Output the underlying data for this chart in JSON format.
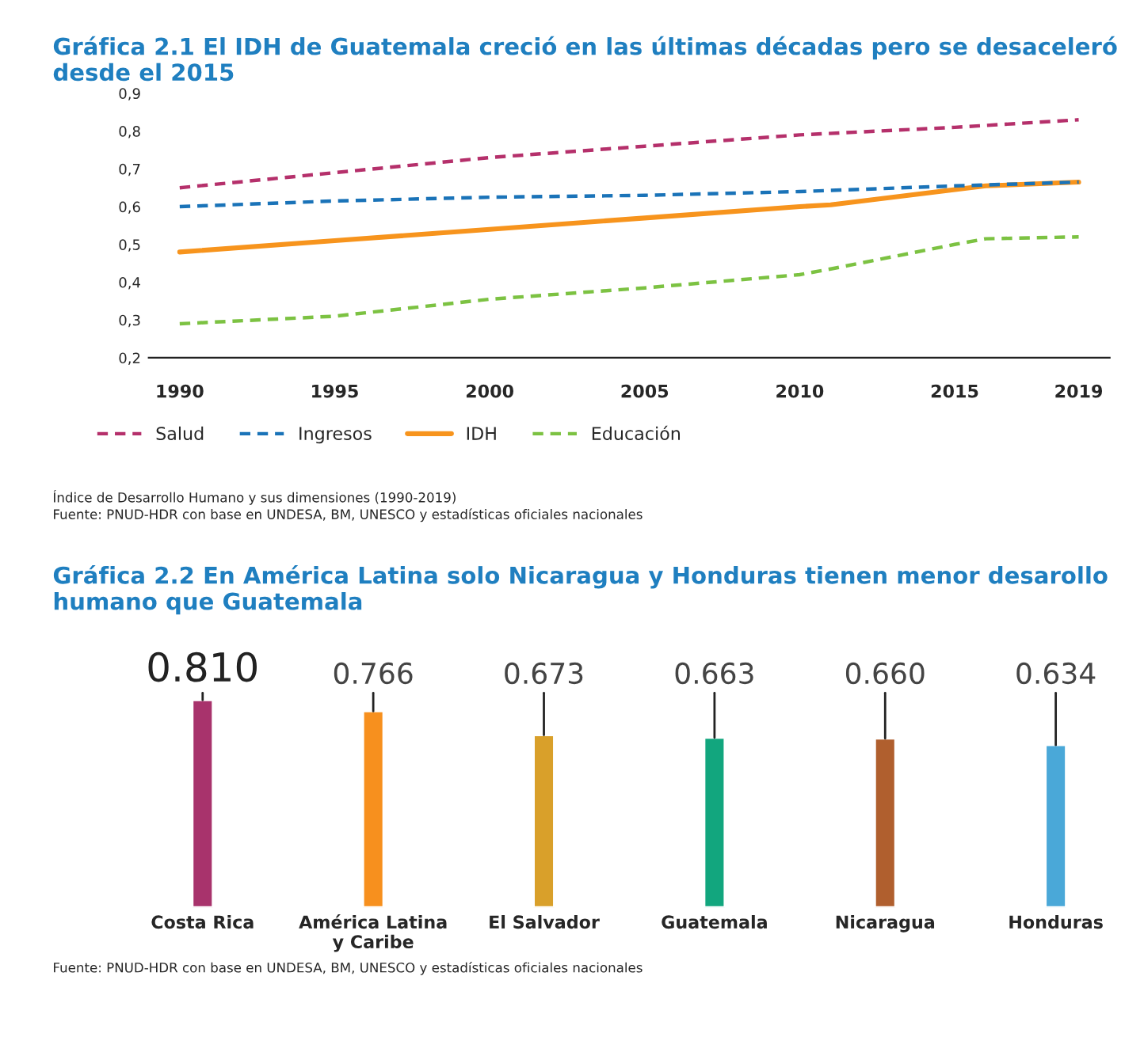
{
  "chart_data": [
    {
      "type": "line",
      "title": "Gráfica 2.1 El IDH de Guatemala creció en las últimas décadas pero se desaceleró desde el 2015",
      "series": [
        {
          "name": "Salud",
          "color": "#b5306b",
          "line_style": "dashed",
          "x": [
            1990,
            1995,
            2000,
            2005,
            2010,
            2015,
            2019
          ],
          "values": [
            0.65,
            0.69,
            0.73,
            0.76,
            0.79,
            0.81,
            0.83
          ]
        },
        {
          "name": "Ingresos",
          "color": "#1a73b8",
          "line_style": "dashed",
          "x": [
            1990,
            1995,
            2000,
            2005,
            2010,
            2015,
            2019
          ],
          "values": [
            0.6,
            0.615,
            0.625,
            0.63,
            0.64,
            0.655,
            0.665
          ]
        },
        {
          "name": "IDH",
          "color": "#f7941d",
          "line_style": "solid",
          "x": [
            1990,
            1995,
            2000,
            2005,
            2010,
            2011,
            2016,
            2019
          ],
          "values": [
            0.48,
            0.51,
            0.54,
            0.57,
            0.6,
            0.605,
            0.655,
            0.665
          ]
        },
        {
          "name": "Educación",
          "color": "#7cc242",
          "line_style": "dashed",
          "x": [
            1990,
            1995,
            2000,
            2005,
            2010,
            2011,
            2015,
            2016,
            2019
          ],
          "values": [
            0.29,
            0.31,
            0.355,
            0.385,
            0.42,
            0.435,
            0.5,
            0.515,
            0.52
          ]
        }
      ],
      "xlim": [
        1989,
        2020
      ],
      "xticks": [
        1990,
        1995,
        2000,
        2005,
        2010,
        2015,
        2019
      ],
      "ylim": [
        0.2,
        0.9
      ],
      "yticks": [
        {
          "value": 0.2,
          "label": "0,2"
        },
        {
          "value": 0.3,
          "label": "0,3"
        },
        {
          "value": 0.4,
          "label": "0,4"
        },
        {
          "value": 0.5,
          "label": "0,5"
        },
        {
          "value": 0.6,
          "label": "0,6"
        },
        {
          "value": 0.7,
          "label": "0,7"
        },
        {
          "value": 0.8,
          "label": "0,8"
        },
        {
          "value": 0.9,
          "label": "0,9"
        }
      ],
      "legend": "bottom",
      "grid": false,
      "annotations": [
        "Índice de Desarrollo Humano y sus dimensiones (1990-2019)",
        "Fuente: PNUD-HDR con base en UNDESA, BM, UNESCO y estadísticas oficiales nacionales"
      ]
    },
    {
      "type": "bar",
      "title": "Gráfica 2.2 En América Latina solo Nicaragua y Honduras tienen menor desarollo humano que Guatemala",
      "categories": [
        "Costa Rica",
        "América Latina\ny Caribe",
        "El Salvador",
        "Guatemala",
        "Nicaragua",
        "Honduras"
      ],
      "values": [
        0.81,
        0.766,
        0.673,
        0.663,
        0.66,
        0.634
      ],
      "value_labels": [
        "0.810",
        "0.766",
        "0.673",
        "0.663",
        "0.660",
        "0.634"
      ],
      "colors": [
        "#a8336c",
        "#f7901e",
        "#d9a02a",
        "#12a67e",
        "#b05f2e",
        "#4aa8d8"
      ],
      "tick_labels": "x",
      "annotations": [
        "Fuente: PNUD-HDR con base en UNDESA, BM, UNESCO y estadísticas oficiales nacionales"
      ]
    }
  ]
}
